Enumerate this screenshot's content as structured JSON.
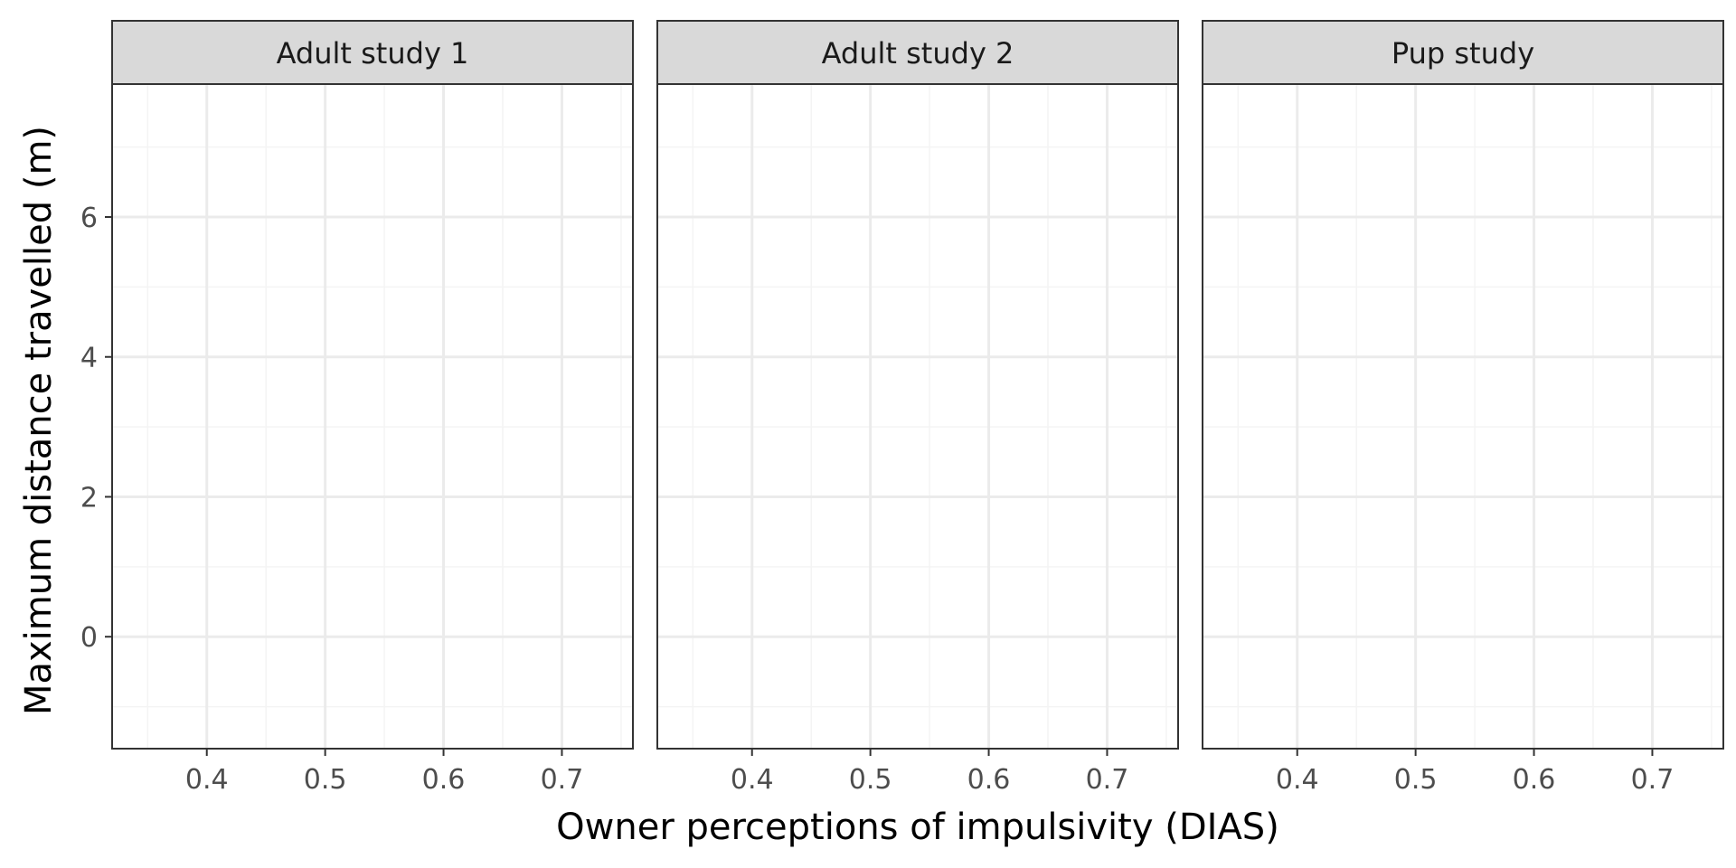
{
  "chart_data": {
    "type": "scatter",
    "xlabel": "Owner perceptions of impulsivity (DIAS)",
    "ylabel": "Maximum distance travelled (m)",
    "xlim": [
      0.32,
      0.76
    ],
    "ylim": [
      -1.6,
      7.9
    ],
    "x_ticks": [
      0.4,
      0.5,
      0.6,
      0.7
    ],
    "x_tick_labels": [
      "0.4",
      "0.5",
      "0.6",
      "0.7"
    ],
    "y_ticks": [
      0,
      2,
      4,
      6
    ],
    "y_tick_labels": [
      "0",
      "2",
      "4",
      "6"
    ],
    "grid": true,
    "panels": [
      {
        "title": "Adult study 1",
        "points": []
      },
      {
        "title": "Adult study 2",
        "points": []
      },
      {
        "title": "Pup study",
        "points": []
      }
    ],
    "colors": {
      "strip_fill": "#d9d9d9",
      "panel_border": "#333333",
      "grid_major": "#ebebeb",
      "grid_minor": "#f4f4f4",
      "tick_text": "#4d4d4d"
    }
  }
}
